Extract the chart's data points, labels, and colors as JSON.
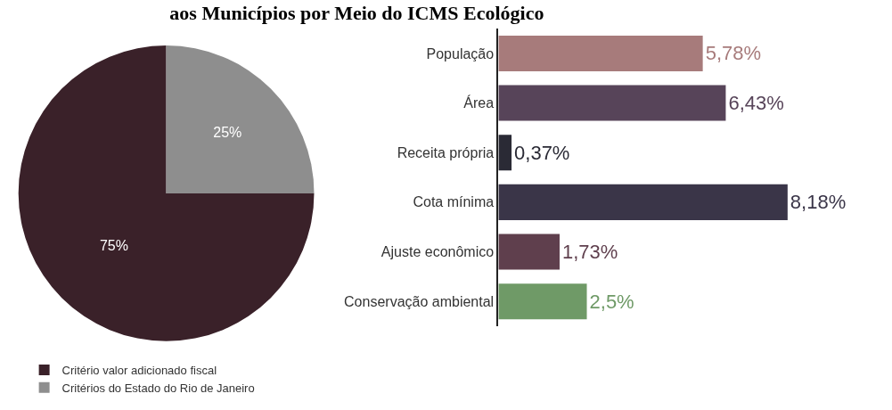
{
  "chart_data": [
    {
      "type": "pie",
      "title": "aos Municípios por Meio do ICMS Ecológico",
      "categories": [
        "Critério valor adicionado fiscal",
        "Critérios do Estado do Rio de Janeiro"
      ],
      "values": [
        75,
        25
      ],
      "colors": [
        "#3a2129",
        "#8e8e8e"
      ],
      "value_labels": [
        "75%",
        "25%"
      ],
      "legend": "bottom left"
    },
    {
      "type": "bar",
      "orientation": "horizontal",
      "categories": [
        "População",
        "Área",
        "Receita própria",
        "Cota mínima",
        "Ajuste econômico",
        "Conservação ambiental"
      ],
      "values": [
        5.78,
        6.43,
        0.37,
        8.18,
        1.73,
        2.5
      ],
      "colors": [
        "#a77b7b",
        "#574459",
        "#2a2a35",
        "#3a3548",
        "#5f3f4d",
        "#6f9a67"
      ],
      "value_labels": [
        "5,78%",
        "6,43%",
        "0,37%",
        "8,18%",
        "1,73%",
        "2,5%"
      ]
    }
  ]
}
